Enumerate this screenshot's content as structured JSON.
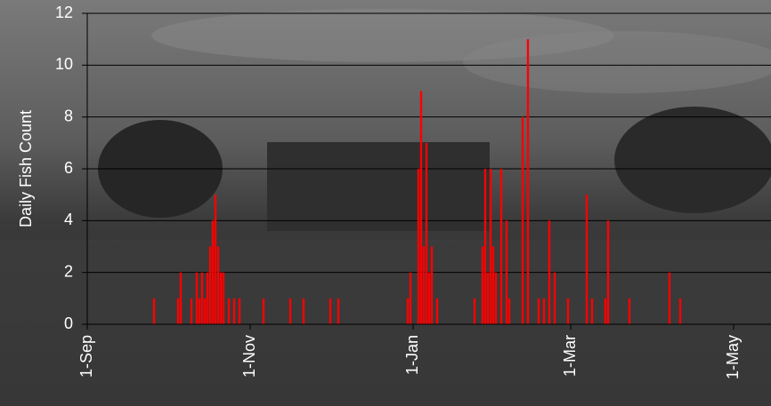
{
  "chart_data": {
    "type": "bar",
    "y_label": "Daily Fish Count",
    "x": [
      "26-Sep",
      "5-Oct",
      "6-Oct",
      "10-Oct",
      "12-Oct",
      "13-Oct",
      "14-Oct",
      "15-Oct",
      "16-Oct",
      "17-Oct",
      "18-Oct",
      "19-Oct",
      "20-Oct",
      "21-Oct",
      "22-Oct",
      "24-Oct",
      "26-Oct",
      "28-Oct",
      "6-Nov",
      "16-Nov",
      "21-Nov",
      "1-Dec",
      "4-Dec",
      "30-Dec",
      "31-Dec",
      "3-Jan",
      "4-Jan",
      "5-Jan",
      "6-Jan",
      "7-Jan",
      "8-Jan",
      "10-Jan",
      "24-Jan",
      "27-Jan",
      "28-Jan",
      "29-Jan",
      "30-Jan",
      "31-Jan",
      "1-Feb",
      "3-Feb",
      "5-Feb",
      "6-Feb",
      "11-Feb",
      "13-Feb",
      "17-Feb",
      "19-Feb",
      "21-Feb",
      "23-Feb",
      "28-Feb",
      "7-Mar",
      "9-Mar",
      "14-Mar",
      "15-Mar",
      "23-Mar",
      "7-Apr",
      "11-Apr"
    ],
    "values": [
      1,
      1,
      2,
      1,
      2,
      1,
      2,
      1,
      2,
      3,
      4,
      5,
      3,
      2,
      2,
      1,
      1,
      1,
      1,
      1,
      1,
      1,
      1,
      1,
      2,
      6,
      9,
      3,
      7,
      2,
      3,
      1,
      1,
      3,
      6,
      2,
      6,
      3,
      2,
      6,
      4,
      1,
      8,
      11,
      1,
      1,
      4,
      2,
      1,
      5,
      1,
      1,
      4,
      1,
      2,
      1
    ],
    "color": "#ff0000",
    "xlim": [
      "1-Sep",
      "15-May"
    ],
    "xticks": [
      "1-Sep",
      "1-Nov",
      "1-Jan",
      "1-Mar",
      "1-May"
    ],
    "ylim": [
      0,
      12
    ],
    "yticks": [
      0,
      2,
      4,
      6,
      8,
      10,
      12
    ],
    "grid": true
  }
}
